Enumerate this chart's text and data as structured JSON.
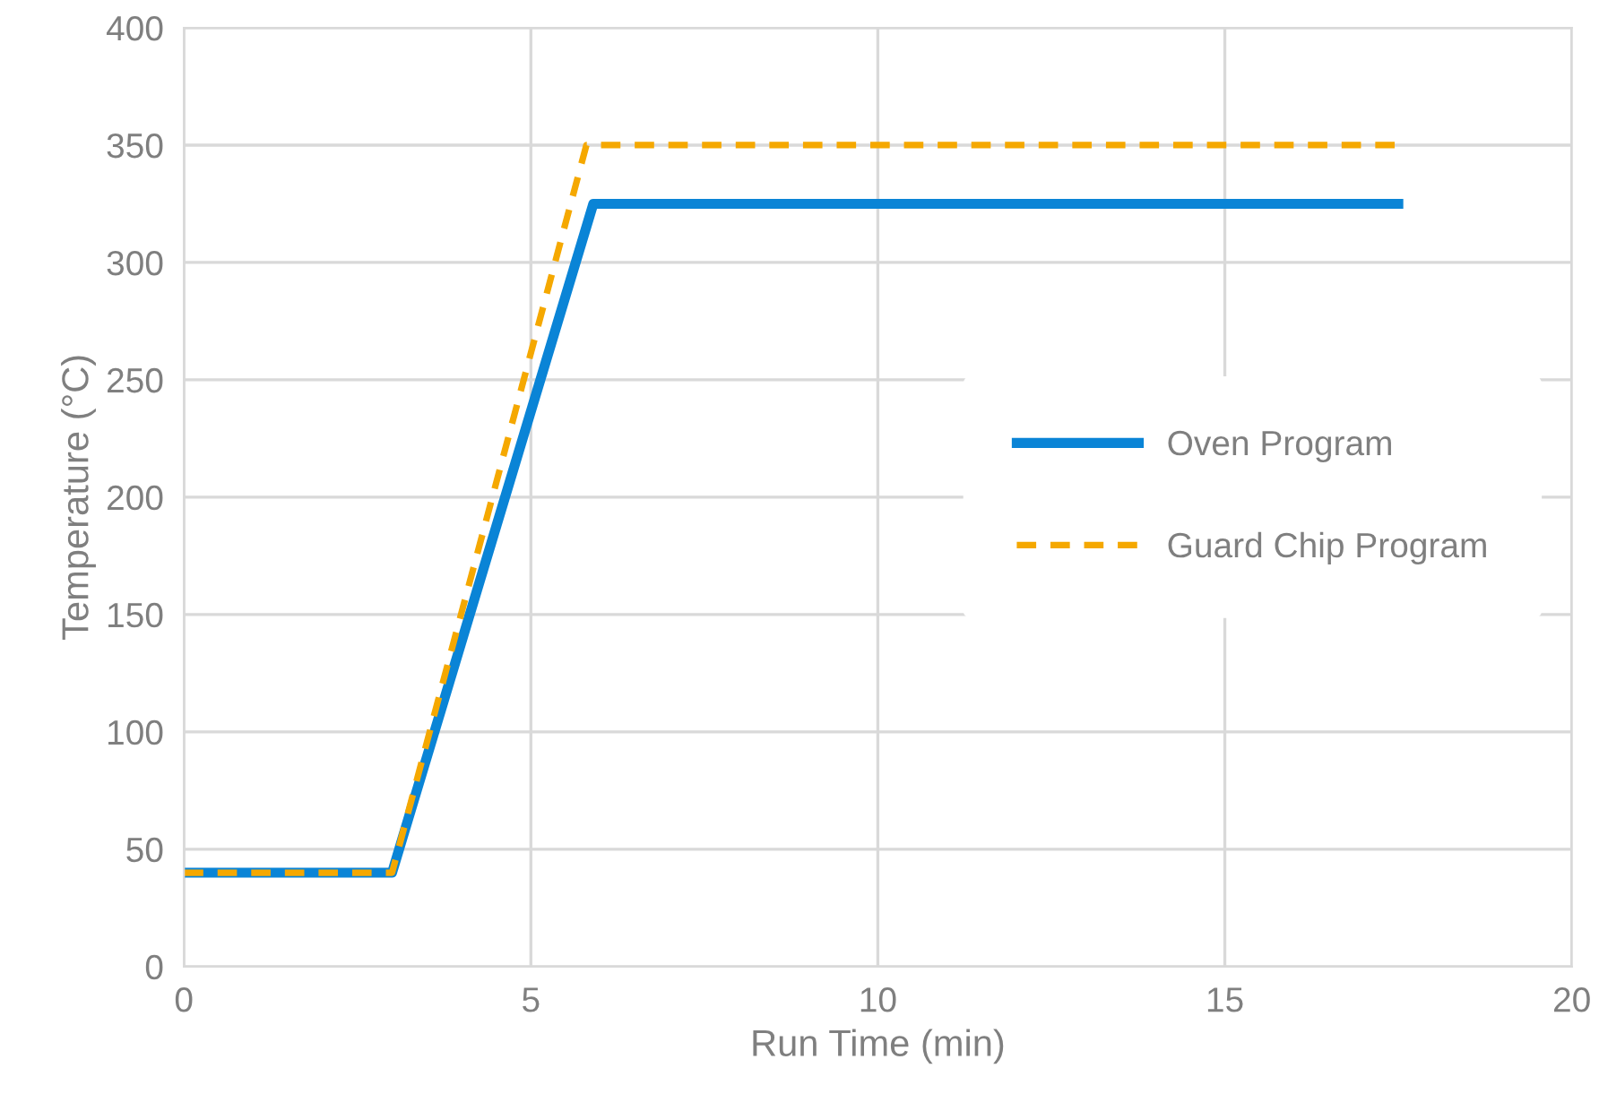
{
  "chart_data": {
    "type": "line",
    "xlabel": "Run Time (min)",
    "ylabel": "Temperature (°C)",
    "xlim": [
      0,
      20
    ],
    "xticks": [
      0,
      5,
      10,
      15,
      20
    ],
    "ylim": [
      0,
      400
    ],
    "yticks": [
      0,
      50,
      100,
      150,
      200,
      250,
      300,
      350,
      400
    ],
    "grid": true,
    "legend": "right",
    "marker": "none",
    "series": [
      {
        "name": "Oven Program",
        "color": "#0a84d6",
        "line_style": "solid",
        "x": [
          0,
          3,
          5.9,
          17.5
        ],
        "values": [
          40,
          40,
          325,
          325
        ]
      },
      {
        "name": "Guard Chip Program",
        "color": "#f5a800",
        "line_style": "dashed",
        "x": [
          0,
          3,
          5.8,
          17.5
        ],
        "values": [
          40,
          40,
          350,
          350
        ]
      }
    ]
  }
}
